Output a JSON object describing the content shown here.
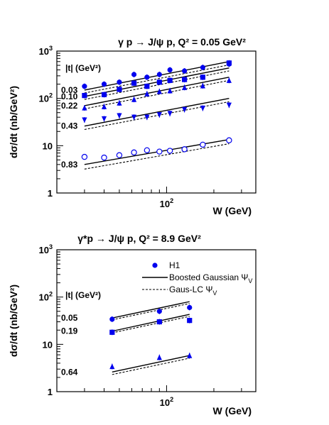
{
  "chart_data": [
    {
      "type": "scatter",
      "title": "γ p → J/ψ p,  Q² = 0.05 GeV²",
      "xlabel": "W  (GeV)",
      "ylabel": "dσ/dt  (nb/GeV²)",
      "xscale": "log",
      "yscale": "log",
      "xlim": [
        20,
        370
      ],
      "ylim": [
        1,
        1000
      ],
      "y_tick_labels": [
        "1",
        "10",
        "10²",
        "10³"
      ],
      "x_tick_labels": [
        "10²"
      ],
      "legend_heading": "|t|  (GeV²)",
      "series": [
        {
          "name": "0.03",
          "marker": "filled-circle",
          "x": [
            30,
            40,
            50,
            62,
            75,
            90,
            105,
            130,
            170,
            250
          ],
          "y": [
            180,
            200,
            220,
            320,
            280,
            320,
            400,
            380,
            450,
            530
          ],
          "fit_solid": [
            [
              30,
              150
            ],
            [
              250,
              600
            ]
          ],
          "fit_dashed": [
            [
              30,
              130
            ],
            [
              250,
              510
            ]
          ]
        },
        {
          "name": "0.10",
          "marker": "filled-square",
          "x": [
            30,
            40,
            50,
            62,
            75,
            90,
            105,
            130,
            170,
            250
          ],
          "y": [
            115,
            120,
            155,
            210,
            180,
            220,
            240,
            250,
            280,
            560
          ],
          "fit_solid": [
            [
              30,
              110
            ],
            [
              250,
              440
            ]
          ],
          "fit_dashed": [
            [
              30,
              95
            ],
            [
              250,
              380
            ]
          ]
        },
        {
          "name": "0.22",
          "marker": "filled-triangle-up",
          "x": [
            30,
            40,
            50,
            62,
            75,
            90,
            105,
            130,
            170,
            250
          ],
          "y": [
            63,
            67,
            80,
            95,
            125,
            140,
            145,
            170,
            185,
            240
          ],
          "fit_solid": [
            [
              30,
              70
            ],
            [
              250,
              280
            ]
          ],
          "fit_dashed": [
            [
              30,
              60
            ],
            [
              250,
              240
            ]
          ]
        },
        {
          "name": "0.43",
          "marker": "filled-triangle-down",
          "x": [
            30,
            40,
            50,
            62,
            75,
            90,
            105,
            130,
            170,
            250
          ],
          "y": [
            35,
            37,
            43,
            40,
            40,
            45,
            48,
            58,
            62,
            72
          ],
          "fit_solid": [
            [
              30,
              26
            ],
            [
              250,
              100
            ]
          ],
          "fit_dashed": [
            [
              30,
              22
            ],
            [
              250,
              85
            ]
          ]
        },
        {
          "name": "0.83",
          "marker": "open-circle",
          "x": [
            30,
            40,
            50,
            62,
            75,
            90,
            105,
            130,
            170,
            250
          ],
          "y": [
            5.8,
            5.6,
            6.3,
            7.2,
            8.0,
            7.5,
            7.8,
            8.4,
            10.5,
            13
          ],
          "fit_solid": [
            [
              30,
              4.0
            ],
            [
              250,
              13.5
            ]
          ],
          "fit_dashed": [
            [
              30,
              3.2
            ],
            [
              250,
              11
            ]
          ]
        }
      ]
    },
    {
      "type": "scatter",
      "title": "γ*p → J/ψ p,  Q² = 8.9 GeV²",
      "xlabel": "W  (GeV)",
      "ylabel": "dσ/dt  (nb/GeV²)",
      "xscale": "log",
      "yscale": "log",
      "xlim": [
        20,
        370
      ],
      "ylim": [
        1,
        1000
      ],
      "y_tick_labels": [
        "1",
        "10",
        "10²",
        "10³"
      ],
      "x_tick_labels": [
        "10²"
      ],
      "legend_heading": "|t|  (GeV²)",
      "legend": [
        {
          "label": "H1",
          "kind": "marker"
        },
        {
          "label": "Boosted Gaussian Ψ",
          "sub": "V",
          "kind": "solid"
        },
        {
          "label": "Gaus-LC Ψ",
          "sub": "V",
          "kind": "dashed"
        }
      ],
      "series": [
        {
          "name": "0.05",
          "marker": "filled-circle",
          "x": [
            45,
            90,
            140
          ],
          "y": [
            34,
            50,
            60
          ],
          "fit_solid": [
            [
              45,
              36
            ],
            [
              140,
              80
            ]
          ],
          "fit_dashed": [
            [
              45,
              33
            ],
            [
              140,
              73
            ]
          ]
        },
        {
          "name": "0.19",
          "marker": "filled-square",
          "x": [
            45,
            90,
            140
          ],
          "y": [
            18,
            30,
            32
          ],
          "fit_solid": [
            [
              45,
              19
            ],
            [
              140,
              43
            ]
          ],
          "fit_dashed": [
            [
              45,
              17.5
            ],
            [
              140,
              39
            ]
          ]
        },
        {
          "name": "0.64",
          "marker": "filled-triangle-up",
          "x": [
            45,
            90,
            140
          ],
          "y": [
            3.4,
            5.3,
            5.8
          ],
          "fit_solid": [
            [
              45,
              2.6
            ],
            [
              140,
              5.8
            ]
          ],
          "fit_dashed": [
            [
              45,
              2.3
            ],
            [
              140,
              5.1
            ]
          ]
        }
      ]
    }
  ]
}
